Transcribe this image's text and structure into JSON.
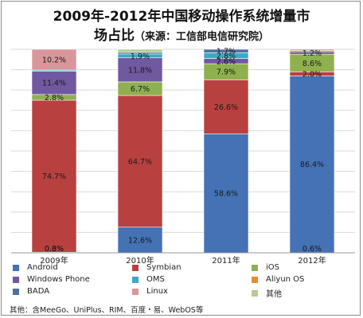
{
  "title_line_1": "2009年-2012年中国移动操作系统增量市",
  "title_line_2": "场占比",
  "title_source": "（来源：工信部电信研究院）",
  "footnote": "其他：含MeeGo、UniPlus、RIM、百度・易、WebOS等",
  "chart_data": {
    "type": "bar",
    "stacked": true,
    "categories": [
      "2009年",
      "2010年",
      "2011年",
      "2012年"
    ],
    "ylim": [
      0,
      100
    ],
    "grid": true,
    "legend_position": "bottom",
    "series": [
      {
        "name": "Android",
        "color": "#4472b4",
        "values": [
          0.3,
          12.6,
          58.6,
          86.4
        ],
        "labels": [
          "0.3%",
          "12.6%",
          "58.6%",
          "86.4%"
        ]
      },
      {
        "name": "Symbian",
        "color": "#b8413f",
        "values": [
          74.7,
          64.7,
          26.6,
          2.0
        ],
        "labels": [
          "74.7%",
          "64.7%",
          "26.6%",
          "2.0%"
        ]
      },
      {
        "name": "iOS",
        "color": "#8fb04e",
        "values": [
          2.8,
          6.7,
          7.9,
          8.6
        ],
        "labels": [
          "2.8%",
          "6.7%",
          "7.9%",
          "8.6%"
        ]
      },
      {
        "name": "Windows Phone",
        "color": "#7059a0",
        "values": [
          11.4,
          11.8,
          2.6,
          1.2
        ],
        "labels": [
          "11.4%",
          "11.8%",
          "2.6%",
          "1.2%"
        ]
      },
      {
        "name": "OMS",
        "color": "#3ea8c4",
        "values": [
          0.6,
          1.9,
          2.8,
          0.6
        ],
        "labels": [
          "0.6%",
          "1.9%",
          "2.8%",
          "0.6%"
        ]
      },
      {
        "name": "Aliyun OS",
        "color": "#e98c30",
        "values": [
          0,
          0,
          0,
          0.6
        ],
        "labels": [
          "",
          "",
          "",
          ""
        ]
      },
      {
        "name": "BADA",
        "color": "#4f6fa0",
        "values": [
          0,
          0.8,
          1.7,
          0
        ],
        "labels": [
          "",
          "",
          "1.7%",
          ""
        ]
      },
      {
        "name": "Linux",
        "color": "#d9979b",
        "values": [
          10.2,
          0,
          0,
          0
        ],
        "labels": [
          "10.2%",
          "",
          "",
          ""
        ]
      },
      {
        "name": "其他",
        "color": "#b5cc8e",
        "values": [
          0,
          1.5,
          0,
          0
        ],
        "labels": [
          "",
          "",
          "",
          ""
        ]
      }
    ]
  }
}
